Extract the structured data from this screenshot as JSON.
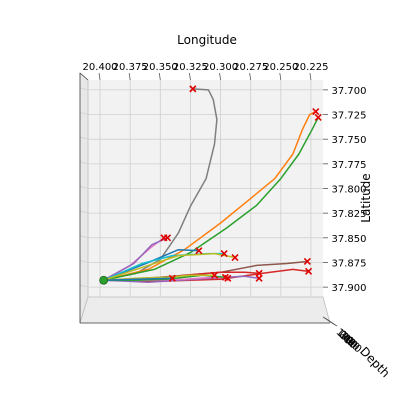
{
  "chart_data": {
    "type": "line",
    "projection": "3d",
    "title": "",
    "xlabel": "Longitude",
    "ylabel": "Latitude",
    "zlabel": "Depth",
    "xlim": [
      20.41,
      20.215
    ],
    "ylim": [
      37.69,
      37.91
    ],
    "x_ticks": [
      "20.400",
      "20.375",
      "20.350",
      "20.325",
      "20.300",
      "20.275",
      "20.250",
      "20.225"
    ],
    "y_ticks": [
      "37.700",
      "37.725",
      "37.750",
      "37.775",
      "37.800",
      "37.825",
      "37.850",
      "37.875",
      "37.900"
    ],
    "z_ticks": [
      "0",
      "100",
      "200",
      "300",
      "400",
      "500"
    ],
    "grid": true,
    "origin": {
      "lon": 20.397,
      "lat": 37.893,
      "marker": "circle",
      "color": "#2ca02c"
    },
    "end_marker": {
      "marker": "x",
      "color": "#e00000"
    },
    "series": [
      {
        "color": "#7f7f7f",
        "points": [
          [
            20.397,
            37.893
          ],
          [
            20.37,
            37.886
          ],
          [
            20.35,
            37.872
          ],
          [
            20.335,
            37.845
          ],
          [
            20.325,
            37.818
          ],
          [
            20.312,
            37.79
          ],
          [
            20.305,
            37.755
          ],
          [
            20.303,
            37.73
          ],
          [
            20.306,
            37.71
          ],
          [
            20.31,
            37.7
          ],
          [
            20.323,
            37.699
          ]
        ]
      },
      {
        "color": "#ff7f0e",
        "points": [
          [
            20.397,
            37.893
          ],
          [
            20.36,
            37.882
          ],
          [
            20.33,
            37.862
          ],
          [
            20.3,
            37.835
          ],
          [
            20.275,
            37.81
          ],
          [
            20.255,
            37.79
          ],
          [
            20.24,
            37.765
          ],
          [
            20.232,
            37.74
          ],
          [
            20.226,
            37.725
          ],
          [
            20.221,
            37.722
          ]
        ]
      },
      {
        "color": "#2ca02c",
        "points": [
          [
            20.397,
            37.893
          ],
          [
            20.355,
            37.882
          ],
          [
            20.325,
            37.865
          ],
          [
            20.295,
            37.84
          ],
          [
            20.27,
            37.817
          ],
          [
            20.25,
            37.79
          ],
          [
            20.235,
            37.765
          ],
          [
            20.224,
            37.74
          ],
          [
            20.219,
            37.728
          ]
        ]
      },
      {
        "color": "#e377c2",
        "points": [
          [
            20.397,
            37.893
          ],
          [
            20.375,
            37.878
          ],
          [
            20.358,
            37.86
          ],
          [
            20.347,
            37.85
          ]
        ]
      },
      {
        "color": "#9467bd",
        "points": [
          [
            20.397,
            37.893
          ],
          [
            20.372,
            37.876
          ],
          [
            20.357,
            37.857
          ],
          [
            20.344,
            37.85
          ]
        ]
      },
      {
        "color": "#1f77b4",
        "points": [
          [
            20.397,
            37.893
          ],
          [
            20.36,
            37.875
          ],
          [
            20.335,
            37.862
          ],
          [
            20.318,
            37.863
          ]
        ]
      },
      {
        "color": "#17becf",
        "points": [
          [
            20.397,
            37.893
          ],
          [
            20.365,
            37.876
          ],
          [
            20.34,
            37.868
          ],
          [
            20.31,
            37.866
          ],
          [
            20.297,
            37.866
          ]
        ]
      },
      {
        "color": "#bcbd22",
        "points": [
          [
            20.397,
            37.893
          ],
          [
            20.36,
            37.878
          ],
          [
            20.335,
            37.868
          ],
          [
            20.305,
            37.866
          ],
          [
            20.288,
            37.87
          ]
        ]
      },
      {
        "color": "#8c564b",
        "points": [
          [
            20.397,
            37.893
          ],
          [
            20.35,
            37.89
          ],
          [
            20.3,
            37.885
          ],
          [
            20.27,
            37.878
          ],
          [
            20.245,
            37.876
          ],
          [
            20.228,
            37.874
          ]
        ]
      },
      {
        "color": "#d62728",
        "points": [
          [
            20.397,
            37.893
          ],
          [
            20.35,
            37.894
          ],
          [
            20.3,
            37.892
          ],
          [
            20.265,
            37.886
          ],
          [
            20.24,
            37.882
          ],
          [
            20.227,
            37.884
          ]
        ]
      },
      {
        "color": "#d62728",
        "points": [
          [
            20.397,
            37.893
          ],
          [
            20.36,
            37.892
          ],
          [
            20.33,
            37.888
          ],
          [
            20.3,
            37.885
          ],
          [
            20.28,
            37.885
          ],
          [
            20.268,
            37.886
          ]
        ]
      },
      {
        "color": "#9467bd",
        "points": [
          [
            20.397,
            37.893
          ],
          [
            20.36,
            37.895
          ],
          [
            20.32,
            37.892
          ],
          [
            20.295,
            37.89
          ],
          [
            20.28,
            37.889
          ],
          [
            20.268,
            37.891
          ]
        ]
      },
      {
        "color": "#e377c2",
        "points": [
          [
            20.397,
            37.893
          ],
          [
            20.36,
            37.893
          ],
          [
            20.33,
            37.892
          ],
          [
            20.305,
            37.89
          ],
          [
            20.294,
            37.891
          ]
        ]
      },
      {
        "color": "#2ca02c",
        "points": [
          [
            20.397,
            37.893
          ],
          [
            20.37,
            37.893
          ],
          [
            20.345,
            37.892
          ],
          [
            20.315,
            37.888
          ],
          [
            20.296,
            37.89
          ]
        ]
      },
      {
        "color": "#bcbd22",
        "points": [
          [
            20.397,
            37.893
          ],
          [
            20.37,
            37.891
          ],
          [
            20.345,
            37.89
          ],
          [
            20.325,
            37.888
          ],
          [
            20.305,
            37.888
          ]
        ]
      },
      {
        "color": "#1f77b4",
        "points": [
          [
            20.397,
            37.893
          ],
          [
            20.37,
            37.892
          ],
          [
            20.34,
            37.891
          ]
        ]
      }
    ]
  }
}
